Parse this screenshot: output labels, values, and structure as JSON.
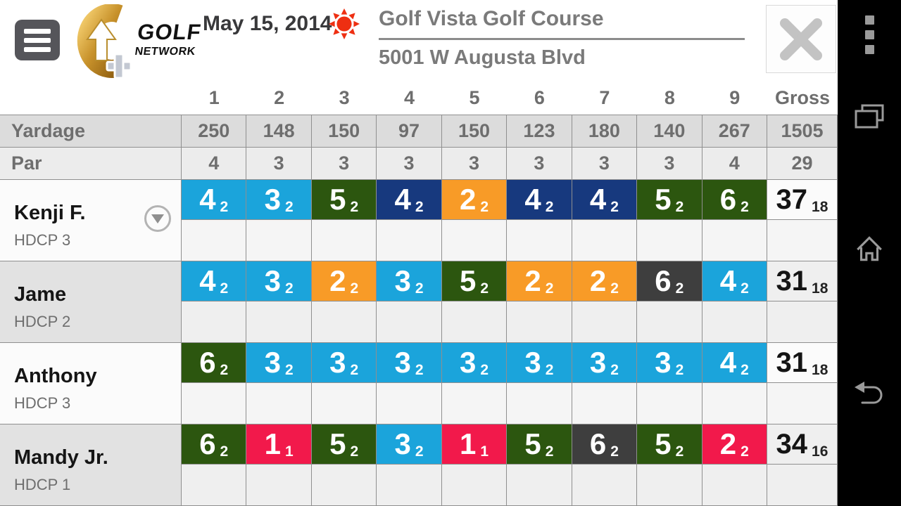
{
  "header": {
    "date": "May 15, 2014",
    "course_name": "Golf Vista Golf Course",
    "course_address": "5001 W Augusta Blvd",
    "logo_line1": "GOLF",
    "logo_line2": "NETWORK"
  },
  "columns": [
    "1",
    "2",
    "3",
    "4",
    "5",
    "6",
    "7",
    "8",
    "9",
    "Gross"
  ],
  "yardage_row": {
    "label": "Yardage",
    "values": [
      "250",
      "148",
      "150",
      "97",
      "150",
      "123",
      "180",
      "140",
      "267",
      "1505"
    ]
  },
  "par_row": {
    "label": "Par",
    "values": [
      "4",
      "3",
      "3",
      "3",
      "3",
      "3",
      "3",
      "3",
      "4",
      "29"
    ]
  },
  "players": [
    {
      "name": "Kenji F.",
      "hdcp": "HDCP 3",
      "dropdown": true,
      "row_shade": "light",
      "scores": [
        {
          "v": "4",
          "p": "2",
          "c": "blue"
        },
        {
          "v": "3",
          "p": "2",
          "c": "blue"
        },
        {
          "v": "5",
          "p": "2",
          "c": "green"
        },
        {
          "v": "4",
          "p": "2",
          "c": "navy"
        },
        {
          "v": "2",
          "p": "2",
          "c": "orange"
        },
        {
          "v": "4",
          "p": "2",
          "c": "navy"
        },
        {
          "v": "4",
          "p": "2",
          "c": "navy"
        },
        {
          "v": "5",
          "p": "2",
          "c": "green"
        },
        {
          "v": "6",
          "p": "2",
          "c": "green"
        }
      ],
      "gross": {
        "v": "37",
        "p": "18"
      }
    },
    {
      "name": "Jame",
      "hdcp": "HDCP 2",
      "dropdown": false,
      "row_shade": "gray",
      "scores": [
        {
          "v": "4",
          "p": "2",
          "c": "blue"
        },
        {
          "v": "3",
          "p": "2",
          "c": "blue"
        },
        {
          "v": "2",
          "p": "2",
          "c": "orange"
        },
        {
          "v": "3",
          "p": "2",
          "c": "blue"
        },
        {
          "v": "5",
          "p": "2",
          "c": "green"
        },
        {
          "v": "2",
          "p": "2",
          "c": "orange"
        },
        {
          "v": "2",
          "p": "2",
          "c": "orange"
        },
        {
          "v": "6",
          "p": "2",
          "c": "darkgray"
        },
        {
          "v": "4",
          "p": "2",
          "c": "blue"
        }
      ],
      "gross": {
        "v": "31",
        "p": "18"
      }
    },
    {
      "name": "Anthony",
      "hdcp": "HDCP 3",
      "dropdown": false,
      "row_shade": "light",
      "scores": [
        {
          "v": "6",
          "p": "2",
          "c": "green"
        },
        {
          "v": "3",
          "p": "2",
          "c": "blue"
        },
        {
          "v": "3",
          "p": "2",
          "c": "blue"
        },
        {
          "v": "3",
          "p": "2",
          "c": "blue"
        },
        {
          "v": "3",
          "p": "2",
          "c": "blue"
        },
        {
          "v": "3",
          "p": "2",
          "c": "blue"
        },
        {
          "v": "3",
          "p": "2",
          "c": "blue"
        },
        {
          "v": "3",
          "p": "2",
          "c": "blue"
        },
        {
          "v": "4",
          "p": "2",
          "c": "blue"
        }
      ],
      "gross": {
        "v": "31",
        "p": "18"
      }
    },
    {
      "name": "Mandy Jr.",
      "hdcp": "HDCP 1",
      "dropdown": false,
      "row_shade": "gray",
      "scores": [
        {
          "v": "6",
          "p": "2",
          "c": "green"
        },
        {
          "v": "1",
          "p": "1",
          "c": "red"
        },
        {
          "v": "5",
          "p": "2",
          "c": "green"
        },
        {
          "v": "3",
          "p": "2",
          "c": "blue"
        },
        {
          "v": "1",
          "p": "1",
          "c": "red"
        },
        {
          "v": "5",
          "p": "2",
          "c": "green"
        },
        {
          "v": "6",
          "p": "2",
          "c": "darkgray"
        },
        {
          "v": "5",
          "p": "2",
          "c": "green"
        },
        {
          "v": "2",
          "p": "2",
          "c": "red"
        }
      ],
      "gross": {
        "v": "34",
        "p": "16"
      }
    }
  ],
  "score_colors": {
    "blue": "#1BA4DB",
    "orange": "#F89B27",
    "navy": "#17397E",
    "green": "#2C560F",
    "darkgray": "#3E3E3E",
    "red": "#F2194B"
  },
  "sysbar": {
    "icons": [
      "overflow-menu-icon",
      "recent-apps-icon",
      "home-icon",
      "back-icon"
    ]
  }
}
